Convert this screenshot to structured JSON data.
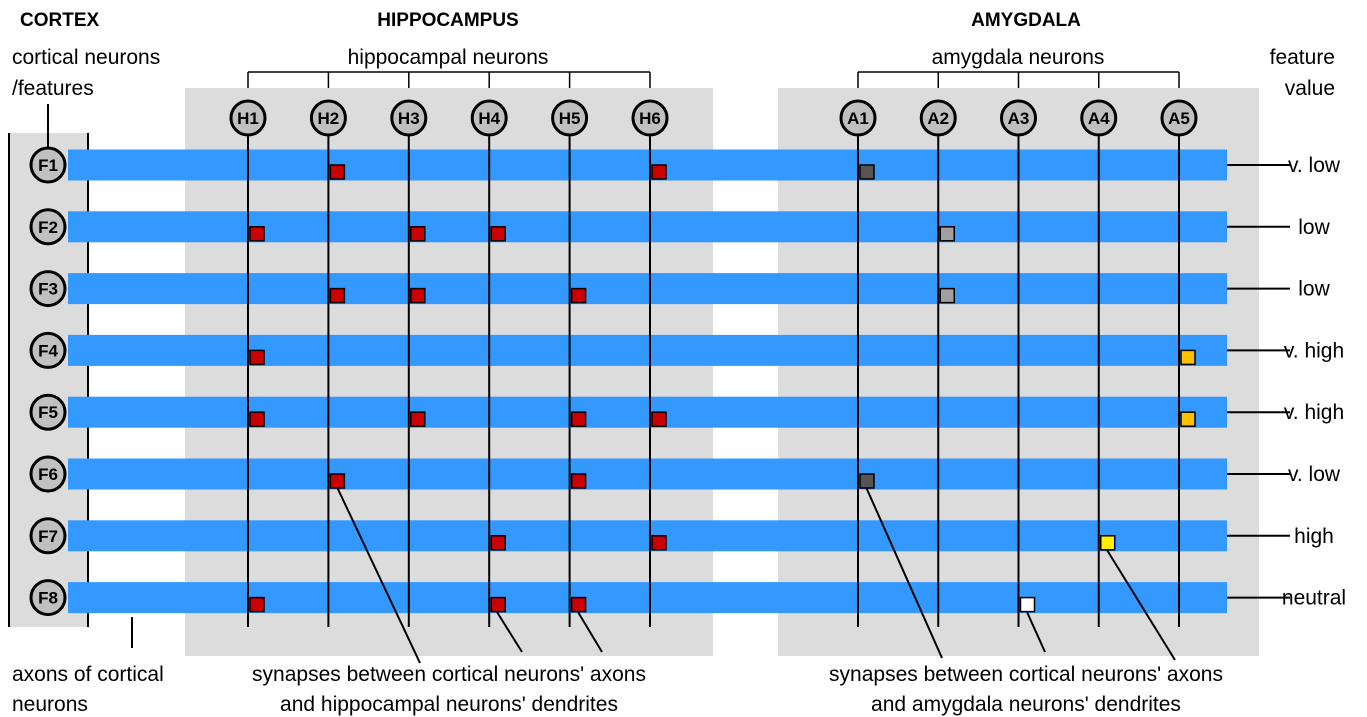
{
  "headers": {
    "cortex": "CORTEX",
    "hippocampus": "HIPPOCAMPUS",
    "amygdala": "AMYGDALA"
  },
  "labels": {
    "cortical_neurons_line1": "cortical neurons",
    "cortical_neurons_line2": "/features",
    "hippocampal_neurons": "hippocampal neurons",
    "amygdala_neurons": "amygdala neurons",
    "feature_value_line1": "feature",
    "feature_value_line2": "value",
    "axons_line1": "axons of cortical",
    "axons_line2": "neurons",
    "hippo_synapse_line1": "synapses between cortical neurons' axons",
    "hippo_synapse_line2": "and hippocampal neurons' dendrites",
    "amyg_synapse_line1": "synapses between cortical neurons' axons",
    "amyg_synapse_line2": "and amygdala neurons' dendrites"
  },
  "colors": {
    "panel": "#dcdcdc",
    "axon": "#3399ff",
    "hippo_synapse": "#cc0000",
    "v_low": "#555555",
    "low": "#a0a0a0",
    "neutral": "#ffffff",
    "high": "#ffee00",
    "v_high": "#ffc000"
  },
  "hippocampal_neurons": [
    "H1",
    "H2",
    "H3",
    "H4",
    "H5",
    "H6"
  ],
  "amygdala_neurons": [
    "A1",
    "A2",
    "A3",
    "A4",
    "A5"
  ],
  "features": [
    {
      "id": "F1",
      "value": "v. low",
      "hippo": [
        "H2",
        "H6"
      ],
      "amyg": [
        "A1"
      ],
      "amyg_color": "v_low"
    },
    {
      "id": "F2",
      "value": "low",
      "hippo": [
        "H1",
        "H3",
        "H4"
      ],
      "amyg": [
        "A2"
      ],
      "amyg_color": "low"
    },
    {
      "id": "F3",
      "value": "low",
      "hippo": [
        "H2",
        "H3",
        "H5"
      ],
      "amyg": [
        "A2"
      ],
      "amyg_color": "low"
    },
    {
      "id": "F4",
      "value": "v. high",
      "hippo": [
        "H1"
      ],
      "amyg": [
        "A5"
      ],
      "amyg_color": "v_high"
    },
    {
      "id": "F5",
      "value": "v. high",
      "hippo": [
        "H1",
        "H3",
        "H5",
        "H6"
      ],
      "amyg": [
        "A5"
      ],
      "amyg_color": "v_high"
    },
    {
      "id": "F6",
      "value": "v. low",
      "hippo": [
        "H2",
        "H5"
      ],
      "amyg": [
        "A1"
      ],
      "amyg_color": "v_low"
    },
    {
      "id": "F7",
      "value": "high",
      "hippo": [
        "H4",
        "H6"
      ],
      "amyg": [
        "A4"
      ],
      "amyg_color": "high"
    },
    {
      "id": "F8",
      "value": "neutral",
      "hippo": [
        "H1",
        "H4",
        "H5"
      ],
      "amyg": [
        "A3"
      ],
      "amyg_color": "neutral"
    }
  ]
}
